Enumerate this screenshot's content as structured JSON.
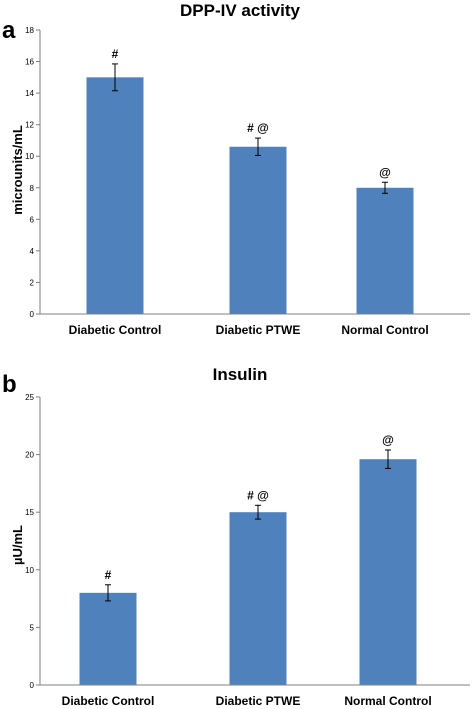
{
  "chart_data": [
    {
      "panel": "a",
      "type": "bar",
      "title": "DPP-IV activity",
      "xlabel": "",
      "ylabel": "microunits/mL",
      "ylim": [
        0,
        18
      ],
      "yticks": [
        0,
        2,
        4,
        6,
        8,
        10,
        12,
        14,
        16,
        18
      ],
      "categories": [
        "Diabetic Control",
        "Diabetic PTWE",
        "Normal Control"
      ],
      "values": [
        15,
        10.6,
        8
      ],
      "errors": [
        0.85,
        0.55,
        0.35
      ],
      "annotations": [
        "#",
        "# @",
        "@"
      ],
      "bar_color": "#4f81bd",
      "grid": false
    },
    {
      "panel": "b",
      "type": "bar",
      "title": "Insulin",
      "xlabel": "",
      "ylabel": "µU/mL",
      "ylim": [
        0,
        25
      ],
      "yticks": [
        0,
        5,
        10,
        15,
        20,
        25
      ],
      "categories": [
        "Diabetic Control",
        "Diabetic PTWE",
        "Normal Control"
      ],
      "values": [
        8,
        15,
        19.6
      ],
      "errors": [
        0.7,
        0.6,
        0.8
      ],
      "annotations": [
        "#",
        "# @",
        "@"
      ],
      "bar_color": "#4f81bd",
      "grid": false
    }
  ]
}
